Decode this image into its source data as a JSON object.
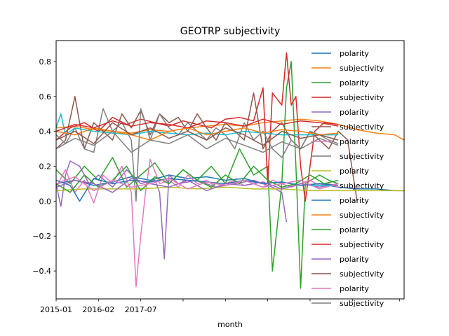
{
  "chart_data": {
    "type": "line",
    "title": "GEOTRP subjectivity",
    "xlabel": "month",
    "ylabel": "",
    "n_points": 75,
    "xlim": [
      0,
      74
    ],
    "ylim": [
      -0.56,
      0.92
    ],
    "y_ticks": [
      -0.4,
      -0.2,
      0.0,
      0.2,
      0.4,
      0.6,
      0.8
    ],
    "y_tick_labels": [
      "−0.4",
      "−0.2",
      "0.0",
      "0.2",
      "0.4",
      "0.6",
      "0.8"
    ],
    "x_tick_positions": [
      0,
      9,
      18,
      27,
      36,
      45,
      54,
      63,
      73
    ],
    "x_tick_labels": [
      "2015-01",
      "2016-02",
      "2017-07",
      "",
      "",
      "",
      "",
      "",
      ""
    ],
    "grid": false,
    "legend_position": "top-right",
    "series": [
      {
        "name": "polarity",
        "color": "#1f77b4",
        "x": [
          0,
          4,
          8,
          12,
          16,
          20,
          24,
          28,
          32,
          36,
          40,
          44,
          48,
          52,
          56,
          60,
          64,
          68,
          72,
          74
        ],
        "values": [
          0.1,
          0.12,
          0.09,
          0.11,
          0.14,
          0.12,
          0.15,
          0.13,
          0.14,
          0.12,
          0.13,
          0.1,
          0.11,
          0.09,
          0.1,
          0.08,
          0.07,
          0.07,
          0.06,
          0.06
        ]
      },
      {
        "name": "subjectivity",
        "color": "#ff7f0e",
        "x": [
          0,
          4,
          8,
          12,
          16,
          20,
          24,
          28,
          32,
          36,
          40,
          44,
          48,
          52,
          56,
          60,
          64,
          68,
          72,
          74
        ],
        "values": [
          0.42,
          0.43,
          0.41,
          0.4,
          0.39,
          0.41,
          0.4,
          0.42,
          0.43,
          0.44,
          0.43,
          0.45,
          0.46,
          0.47,
          0.46,
          0.44,
          0.41,
          0.39,
          0.38,
          0.35
        ]
      },
      {
        "name": "polarity",
        "color": "#2ca02c",
        "x": [
          0,
          3,
          6,
          9,
          12,
          15,
          18,
          21,
          24,
          27,
          30,
          33,
          36,
          39,
          42,
          45,
          46,
          48,
          49,
          50,
          51,
          52,
          53,
          56,
          58,
          60
        ],
        "values": [
          0.18,
          0.1,
          0.2,
          0.12,
          0.25,
          0.08,
          0.15,
          0.22,
          0.1,
          0.18,
          0.12,
          0.2,
          0.1,
          0.3,
          0.15,
          0.2,
          -0.4,
          0.1,
          0.65,
          0.8,
          0.2,
          -0.5,
          0.1,
          0.15,
          0.12,
          0.1
        ]
      },
      {
        "name": "subjectivity",
        "color": "#d62728",
        "x": [
          0,
          3,
          6,
          9,
          12,
          15,
          18,
          21,
          24,
          27,
          30,
          33,
          36,
          39,
          42,
          44,
          45,
          46,
          48,
          49,
          50,
          51,
          52,
          53,
          55,
          57,
          60
        ],
        "values": [
          0.35,
          0.42,
          0.45,
          0.4,
          0.48,
          0.44,
          0.47,
          0.45,
          0.43,
          0.46,
          0.44,
          0.42,
          0.47,
          0.48,
          0.46,
          0.65,
          0.1,
          0.62,
          0.55,
          0.85,
          0.55,
          0.6,
          0.2,
          0.0,
          0.4,
          0.45,
          0.44
        ]
      },
      {
        "name": "polarity",
        "color": "#9467bd",
        "x": [
          0,
          1,
          2,
          3,
          5,
          7,
          9,
          12,
          15,
          18,
          21,
          22,
          23,
          24,
          26,
          30,
          34,
          38,
          42,
          46,
          48,
          49
        ],
        "values": [
          0.1,
          -0.03,
          0.15,
          0.23,
          0.2,
          0.1,
          0.15,
          0.08,
          0.18,
          0.1,
          0.12,
          0.05,
          -0.33,
          0.15,
          0.1,
          0.12,
          0.08,
          0.1,
          0.12,
          0.08,
          0.05,
          -0.12
        ]
      },
      {
        "name": "subjectivity",
        "color": "#8c564b",
        "x": [
          0,
          2,
          4,
          6,
          8,
          10,
          12,
          14,
          16,
          18,
          20,
          22,
          24,
          26,
          28,
          30,
          32,
          34,
          36,
          38,
          40,
          42,
          44,
          46,
          48,
          50,
          52,
          54,
          56,
          58,
          60,
          62,
          64
        ],
        "values": [
          0.3,
          0.35,
          0.6,
          0.3,
          0.45,
          0.4,
          0.35,
          0.5,
          0.42,
          0.52,
          0.38,
          0.5,
          0.45,
          0.48,
          0.4,
          0.5,
          0.42,
          0.35,
          0.45,
          0.4,
          0.35,
          0.62,
          0.3,
          0.4,
          0.45,
          0.35,
          0.3,
          0.4,
          0.35,
          0.3,
          0.4,
          0.35,
          0.0
        ]
      },
      {
        "name": "polarity",
        "color": "#e377c2",
        "x": [
          0,
          2,
          4,
          6,
          8,
          10,
          12,
          14,
          16,
          17,
          18,
          19,
          20,
          22,
          24,
          26,
          28,
          30,
          32,
          34,
          36,
          38,
          40,
          42,
          44,
          46,
          48,
          50,
          52,
          54,
          56,
          58,
          60
        ],
        "values": [
          0.08,
          0.18,
          0.05,
          0.12,
          -0.01,
          0.15,
          0.1,
          0.2,
          0.05,
          -0.49,
          -0.2,
          0.05,
          0.24,
          0.1,
          0.12,
          0.08,
          0.15,
          0.1,
          0.12,
          0.08,
          0.1,
          0.12,
          0.09,
          0.1,
          0.08,
          0.12,
          0.1,
          0.08,
          0.1,
          0.12,
          0.09,
          0.1,
          0.08
        ]
      },
      {
        "name": "subjectivity",
        "color": "#7f7f7f",
        "x": [
          0,
          2,
          4,
          6,
          8,
          10,
          12,
          14,
          16,
          17,
          18,
          19,
          20,
          22,
          24,
          26,
          28,
          30,
          32,
          34,
          36,
          38,
          40,
          42,
          44,
          46,
          48,
          50,
          52,
          54,
          56,
          58,
          60
        ],
        "values": [
          0.38,
          0.33,
          0.42,
          0.3,
          0.28,
          0.53,
          0.4,
          0.45,
          0.35,
          0.0,
          0.53,
          0.45,
          0.35,
          0.5,
          0.42,
          0.38,
          0.45,
          0.4,
          0.35,
          0.42,
          0.38,
          0.3,
          0.45,
          0.35,
          0.4,
          0.3,
          0.25,
          0.35,
          0.3,
          0.4,
          0.38,
          0.35,
          0.33
        ]
      },
      {
        "name": "polarity",
        "color": "#bcbd22",
        "x": [
          0,
          6,
          12,
          18,
          24,
          30,
          36,
          42,
          48,
          54,
          60,
          66,
          72,
          74
        ],
        "values": [
          0.06,
          0.07,
          0.07,
          0.07,
          0.08,
          0.07,
          0.08,
          0.07,
          0.07,
          0.06,
          0.06,
          0.06,
          0.06,
          0.06
        ]
      },
      {
        "name": "subjectivity",
        "color": "#17becf",
        "x": [
          0,
          1,
          2,
          4,
          8,
          12,
          16,
          20,
          24,
          28,
          32,
          36,
          40,
          44,
          48,
          52,
          56,
          60
        ],
        "values": [
          0.42,
          0.5,
          0.38,
          0.42,
          0.4,
          0.39,
          0.38,
          0.4,
          0.39,
          0.38,
          0.39,
          0.38,
          0.4,
          0.39,
          0.38,
          0.38,
          0.38,
          0.38
        ]
      },
      {
        "name": "polarity",
        "color": "#1f77b4",
        "x": [
          0,
          3,
          5,
          8,
          12,
          16,
          20,
          24,
          28,
          32,
          36,
          40,
          44,
          48,
          52,
          56,
          60
        ],
        "values": [
          0.12,
          0.09,
          0.0,
          0.13,
          0.1,
          0.12,
          0.11,
          0.13,
          0.12,
          0.11,
          0.1,
          0.12,
          0.1,
          0.11,
          0.09,
          0.1,
          0.09
        ]
      },
      {
        "name": "subjectivity",
        "color": "#ff7f0e",
        "x": [
          0,
          4,
          8,
          12,
          16,
          20,
          24,
          28,
          32,
          36,
          40,
          44,
          48,
          52,
          56,
          60
        ],
        "values": [
          0.4,
          0.38,
          0.42,
          0.4,
          0.38,
          0.35,
          0.4,
          0.42,
          0.38,
          0.4,
          0.42,
          0.39,
          0.41,
          0.4,
          0.38,
          0.39
        ]
      },
      {
        "name": "polarity",
        "color": "#2ca02c",
        "x": [
          0,
          3,
          6,
          9,
          12,
          15,
          18,
          21,
          24,
          27,
          30,
          33,
          36,
          39,
          42,
          45,
          48,
          51,
          54,
          57,
          60
        ],
        "values": [
          0.1,
          0.05,
          0.15,
          0.08,
          0.12,
          0.2,
          0.06,
          0.14,
          0.1,
          0.18,
          0.12,
          0.08,
          0.15,
          0.1,
          0.2,
          0.12,
          0.08,
          0.1,
          0.15,
          0.1,
          0.12
        ]
      },
      {
        "name": "subjectivity",
        "color": "#d62728",
        "x": [
          0,
          4,
          8,
          12,
          16,
          20,
          24,
          28,
          32,
          36,
          40,
          44,
          48,
          52,
          56,
          60
        ],
        "values": [
          0.4,
          0.44,
          0.42,
          0.46,
          0.43,
          0.45,
          0.44,
          0.42,
          0.46,
          0.45,
          0.43,
          0.47,
          0.44,
          0.46,
          0.45,
          0.43
        ]
      },
      {
        "name": "polarity",
        "color": "#9467bd",
        "x": [
          0,
          4,
          8,
          12,
          16,
          20,
          24,
          28,
          32,
          36,
          40,
          44,
          48,
          52,
          56,
          60
        ],
        "values": [
          0.08,
          0.12,
          0.1,
          0.05,
          0.13,
          0.1,
          0.08,
          0.12,
          0.06,
          0.1,
          0.09,
          0.11,
          0.07,
          0.1,
          0.08,
          0.1
        ]
      },
      {
        "name": "subjectivity",
        "color": "#8c564b",
        "x": [
          0,
          4,
          8,
          12,
          16,
          20,
          24,
          28,
          32,
          36,
          40,
          44,
          48,
          52,
          56,
          60
        ],
        "values": [
          0.35,
          0.4,
          0.33,
          0.45,
          0.38,
          0.42,
          0.36,
          0.4,
          0.35,
          0.42,
          0.38,
          0.32,
          0.4,
          0.36,
          0.38,
          0.35
        ]
      },
      {
        "name": "polarity",
        "color": "#e377c2",
        "x": [
          0,
          4,
          8,
          12,
          16,
          20,
          24,
          28,
          32,
          36,
          40,
          44,
          48,
          52,
          56,
          60
        ],
        "values": [
          0.1,
          0.14,
          0.06,
          0.12,
          0.08,
          0.1,
          0.13,
          0.07,
          0.11,
          0.09,
          0.12,
          0.08,
          0.1,
          0.12,
          0.07,
          0.1
        ]
      },
      {
        "name": "subjectivity",
        "color": "#7f7f7f",
        "x": [
          0,
          4,
          8,
          12,
          16,
          20,
          24,
          28,
          32,
          36,
          40,
          44,
          48,
          52,
          56,
          60
        ],
        "values": [
          0.3,
          0.36,
          0.32,
          0.4,
          0.28,
          0.35,
          0.33,
          0.38,
          0.3,
          0.36,
          0.32,
          0.28,
          0.34,
          0.3,
          0.36,
          0.32
        ]
      }
    ]
  }
}
